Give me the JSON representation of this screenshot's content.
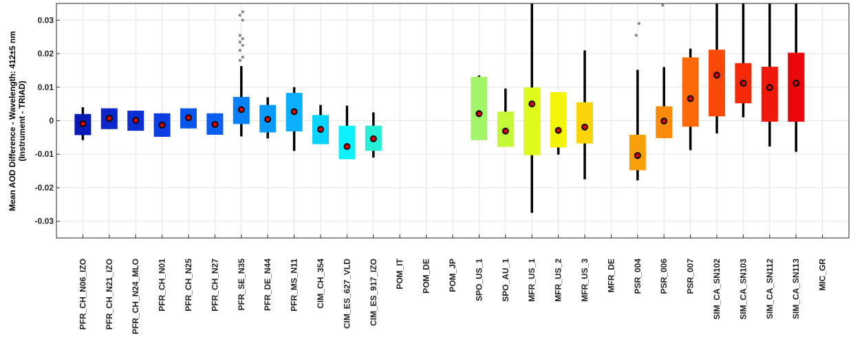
{
  "chart_data": {
    "type": "box",
    "ylabel_line1": "Mean AOD Difference - Wavelength: 412±5 nm",
    "ylabel_line2": "(Instrument - TRIAD)",
    "ylim": [
      -0.035,
      0.035
    ],
    "yticks": [
      -0.03,
      -0.02,
      -0.01,
      0,
      0.01,
      0.02,
      0.03
    ],
    "ytick_labels": [
      "-0.03",
      "-0.02",
      "-0.01",
      "0",
      "0.01",
      "0.02",
      "0.03"
    ],
    "grid": true,
    "categories": [
      "PFR_CH_N06_IZO",
      "PFR_CH_N21_IZO",
      "PFR_CH_N24_MLO",
      "PFR_CH_N01",
      "PFR_CH_N25",
      "PFR_CH_N27",
      "PFR_SE_N35",
      "PFR_DE_N44",
      "PFR_MS_N11",
      "CIM_CH_354",
      "CIM_ES_627_VLD",
      "CIM_ES_917_IZO",
      "POM_IT",
      "POM_DE",
      "POM_JP",
      "SPO_US_1",
      "SPO_AU_1",
      "MFR_US_1",
      "MFR_US_2",
      "MFR_US_3",
      "MFR_DE",
      "PSR_004",
      "PSR_006",
      "PSR_007",
      "SIM_CA_SN102",
      "SIM_CA_SN103",
      "SIM_CA_SN112",
      "SIM_CA_SN113",
      "MIC_GR"
    ],
    "boxes": [
      {
        "q1": -0.0043,
        "q3": 0.002,
        "median": -0.0009,
        "wlo": -0.0058,
        "whi": 0.004,
        "color": "#0a1ab4",
        "outliers": []
      },
      {
        "q1": -0.0025,
        "q3": 0.0037,
        "median": 0.0007,
        "wlo": -0.0025,
        "whi": 0.0037,
        "color": "#0c26c8",
        "outliers": []
      },
      {
        "q1": -0.003,
        "q3": 0.003,
        "median": 0.0001,
        "wlo": -0.003,
        "whi": 0.003,
        "color": "#0a2ed2",
        "outliers": []
      },
      {
        "q1": -0.0048,
        "q3": 0.0022,
        "median": -0.0013,
        "wlo": -0.0048,
        "whi": 0.0022,
        "color": "#0b3ee0",
        "outliers": []
      },
      {
        "q1": -0.0023,
        "q3": 0.0037,
        "median": 0.0009,
        "wlo": -0.0023,
        "whi": 0.0037,
        "color": "#0a55ea",
        "outliers": []
      },
      {
        "q1": -0.0042,
        "q3": 0.0022,
        "median": -0.0011,
        "wlo": -0.0042,
        "whi": 0.0022,
        "color": "#0a5ef0",
        "outliers": []
      },
      {
        "q1": -0.001,
        "q3": 0.0071,
        "median": 0.0033,
        "wlo": -0.0047,
        "whi": 0.0163,
        "color": "#0a82f6",
        "outliers": [
          0.018,
          0.019,
          0.021,
          0.0225,
          0.0235,
          0.0245,
          0.0255,
          0.03,
          0.0315,
          0.0325
        ]
      },
      {
        "q1": -0.0035,
        "q3": 0.0047,
        "median": 0.0004,
        "wlo": -0.0053,
        "whi": 0.007,
        "color": "#0a9afa",
        "outliers": []
      },
      {
        "q1": -0.0032,
        "q3": 0.0083,
        "median": 0.0027,
        "wlo": -0.009,
        "whi": 0.01,
        "color": "#0ab0fc",
        "outliers": []
      },
      {
        "q1": -0.007,
        "q3": 0.0017,
        "median": -0.0026,
        "wlo": -0.007,
        "whi": 0.0047,
        "color": "#0ad4fc",
        "outliers": []
      },
      {
        "q1": -0.0115,
        "q3": -0.0015,
        "median": -0.0077,
        "wlo": -0.0115,
        "whi": 0.0045,
        "color": "#0ef0fa",
        "outliers": []
      },
      {
        "q1": -0.009,
        "q3": -0.0015,
        "median": -0.0054,
        "wlo": -0.011,
        "whi": 0.0025,
        "color": "#28f0d6",
        "outliers": []
      },
      null,
      null,
      null,
      {
        "q1": -0.0058,
        "q3": 0.0131,
        "median": 0.0021,
        "wlo": -0.0058,
        "whi": 0.0135,
        "color": "#a4f46a",
        "outliers": []
      },
      {
        "q1": -0.0078,
        "q3": 0.0027,
        "median": -0.0031,
        "wlo": -0.0078,
        "whi": 0.0096,
        "color": "#c6f83a",
        "outliers": []
      },
      {
        "q1": -0.0103,
        "q3": 0.0099,
        "median": 0.005,
        "wlo": -0.0275,
        "whi": 0.035,
        "color": "#dcfa1e",
        "outliers": []
      },
      {
        "q1": -0.008,
        "q3": 0.0085,
        "median": -0.0029,
        "wlo": -0.0101,
        "whi": 0.0085,
        "color": "#f4f40a",
        "outliers": []
      },
      {
        "q1": -0.0068,
        "q3": 0.0055,
        "median": -0.0019,
        "wlo": -0.0175,
        "whi": 0.021,
        "color": "#fcd40a",
        "outliers": []
      },
      null,
      {
        "q1": -0.0148,
        "q3": -0.0042,
        "median": -0.0104,
        "wlo": -0.0178,
        "whi": 0.0152,
        "color": "#f8a00a",
        "outliers": [
          0.0255,
          0.029
        ]
      },
      {
        "q1": -0.0052,
        "q3": 0.0043,
        "median": -0.0001,
        "wlo": -0.0052,
        "whi": 0.016,
        "color": "#fa8a0a",
        "outliers": [
          0.0345
        ]
      },
      {
        "q1": -0.0018,
        "q3": 0.0189,
        "median": 0.0066,
        "wlo": -0.0088,
        "whi": 0.0215,
        "color": "#fa6a0a",
        "outliers": []
      },
      {
        "q1": 0.0013,
        "q3": 0.0212,
        "median": 0.0136,
        "wlo": -0.0038,
        "whi": 0.035,
        "color": "#f84a0a",
        "outliers": []
      },
      {
        "q1": 0.0052,
        "q3": 0.0172,
        "median": 0.0112,
        "wlo": 0.001,
        "whi": 0.035,
        "color": "#f42a0a",
        "outliers": []
      },
      {
        "q1": -0.0003,
        "q3": 0.0161,
        "median": 0.0099,
        "wlo": -0.0077,
        "whi": 0.035,
        "color": "#f0180a",
        "outliers": []
      },
      {
        "q1": -0.0003,
        "q3": 0.0203,
        "median": 0.0112,
        "wlo": -0.0093,
        "whi": 0.035,
        "color": "#e80a0a",
        "outliers": []
      },
      null
    ]
  }
}
